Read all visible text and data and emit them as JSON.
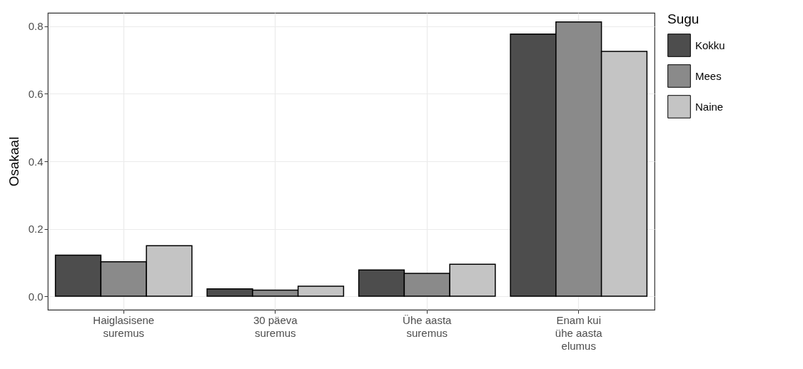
{
  "chart_data": {
    "type": "bar",
    "ylabel": "Osakaal",
    "legend_title": "Sugu",
    "categories": [
      "Haiglasisene\nsuremus",
      "30 päeva\nsuremus",
      "Ühe aasta\nsuremus",
      "Enam kui\nühe aasta\nelumus"
    ],
    "series": [
      {
        "name": "Kokku",
        "color": "#4d4d4d",
        "values": [
          0.122,
          0.022,
          0.078,
          0.777
        ]
      },
      {
        "name": "Mees",
        "color": "#8a8a8a",
        "values": [
          0.102,
          0.018,
          0.068,
          0.813
        ]
      },
      {
        "name": "Naine",
        "color": "#c4c4c4",
        "values": [
          0.15,
          0.03,
          0.095,
          0.726
        ]
      }
    ],
    "ylim": [
      -0.04,
      0.84
    ],
    "yticks": [
      {
        "value": 0,
        "label": "0.0"
      },
      {
        "value": 0.2,
        "label": "0.2"
      },
      {
        "value": 0.4,
        "label": "0.4"
      },
      {
        "value": 0.6,
        "label": "0.6"
      },
      {
        "value": 0.8,
        "label": "0.8"
      }
    ],
    "grid": true,
    "legend": "right"
  }
}
